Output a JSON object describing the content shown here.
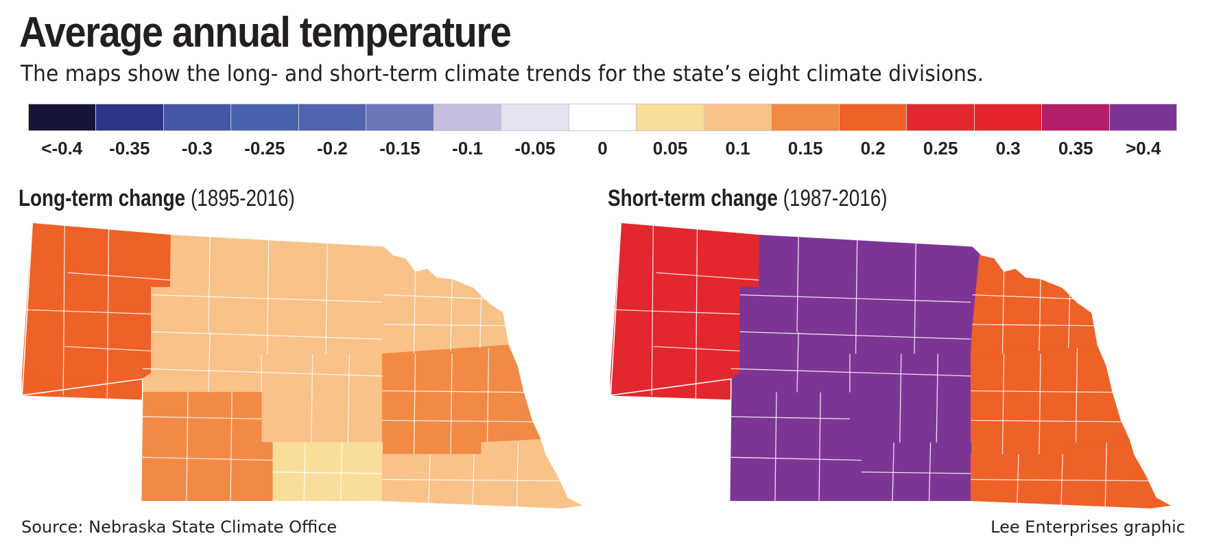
{
  "header": {
    "title": "Average annual temperature",
    "subtitle": "The maps show the long- and short-term climate trends for the state’s eight climate divisions."
  },
  "legend": {
    "items": [
      {
        "label": "<-0.4",
        "color": "#151537"
      },
      {
        "label": "-0.35",
        "color": "#2c3586"
      },
      {
        "label": "-0.3",
        "color": "#4556a6"
      },
      {
        "label": "-0.25",
        "color": "#4863ad"
      },
      {
        "label": "-0.2",
        "color": "#5264af"
      },
      {
        "label": "-0.15",
        "color": "#6c76b8"
      },
      {
        "label": "-0.1",
        "color": "#c5bedf"
      },
      {
        "label": "-0.05",
        "color": "#e6e2f0"
      },
      {
        "label": "0",
        "color": "#ffffff"
      },
      {
        "label": "0.05",
        "color": "#f9de9a"
      },
      {
        "label": "0.1",
        "color": "#f8c289"
      },
      {
        "label": "0.15",
        "color": "#f28a45"
      },
      {
        "label": "0.2",
        "color": "#ee6127"
      },
      {
        "label": "0.25",
        "color": "#e3272e"
      },
      {
        "label": "0.3",
        "color": "#e4252c"
      },
      {
        "label": "0.35",
        "color": "#b31f69"
      },
      {
        "label": ">0.4",
        "color": "#7d3595"
      }
    ]
  },
  "maps": {
    "long_term": {
      "title": "Long-term change",
      "period": "(1895-2016)",
      "divisions": {
        "panhandle_north": "#ee6127",
        "north_central": "#f8c289",
        "northeast": "#f8c289",
        "panhandle_south": "#ee6127",
        "central": "#f8c289",
        "east_central": "#f28a45",
        "southwest": "#f28a45",
        "south_central": "#f9de9a",
        "southeast": "#f8c289"
      }
    },
    "short_term": {
      "title": "Short-term change",
      "period": "(1987-2016)",
      "divisions": {
        "panhandle_north": "#e3272e",
        "north_central": "#7d3595",
        "northeast": "#ee6127",
        "panhandle_south": "#e3272e",
        "central": "#7d3595",
        "east_central": "#ee6127",
        "southwest": "#7d3595",
        "south_central": "#7d3595",
        "southeast": "#ee6127"
      }
    }
  },
  "footer": {
    "source": "Source: Nebraska State Climate Office",
    "credit": "Lee Enterprises graphic"
  }
}
